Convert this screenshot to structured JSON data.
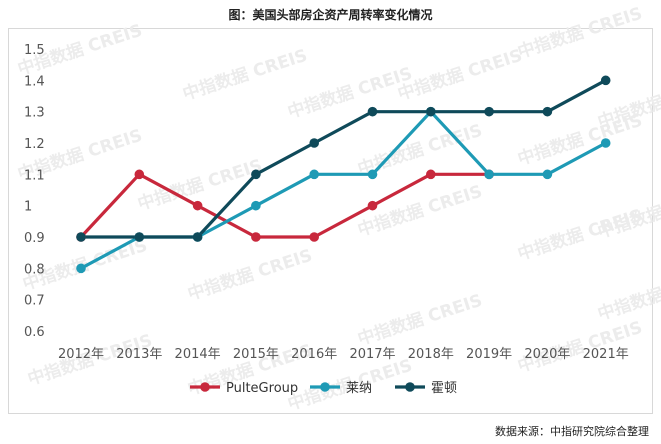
{
  "title": "图：美国头部房企资产周转率变化情况",
  "source": "数据来源：中指研究院综合整理",
  "watermark": "中指数据 CREIS",
  "chart_data": {
    "type": "line",
    "x": [
      "2012年",
      "2013年",
      "2014年",
      "2015年",
      "2016年",
      "2017年",
      "2018年",
      "2019年",
      "2020年",
      "2021年"
    ],
    "ylim": [
      0.6,
      1.5
    ],
    "yticks": [
      "0.6",
      "0.7",
      "0.8",
      "0.9",
      "1",
      "1.1",
      "1.2",
      "1.3",
      "1.4",
      "1.5"
    ],
    "grid": false,
    "legend_position": "bottom",
    "series": [
      {
        "name": "PulteGroup",
        "color": "#c8283c",
        "values": [
          0.9,
          1.1,
          1.0,
          0.9,
          0.9,
          1.0,
          1.1,
          1.1,
          null,
          null
        ]
      },
      {
        "name": "莱纳",
        "color": "#1e9ab5",
        "values": [
          0.8,
          0.9,
          0.9,
          1.0,
          1.1,
          1.1,
          1.3,
          1.1,
          1.1,
          1.2
        ]
      },
      {
        "name": "霍顿",
        "color": "#0f4a5a",
        "values": [
          0.9,
          0.9,
          0.9,
          1.1,
          1.2,
          1.3,
          1.3,
          1.3,
          1.3,
          1.4
        ]
      }
    ]
  }
}
